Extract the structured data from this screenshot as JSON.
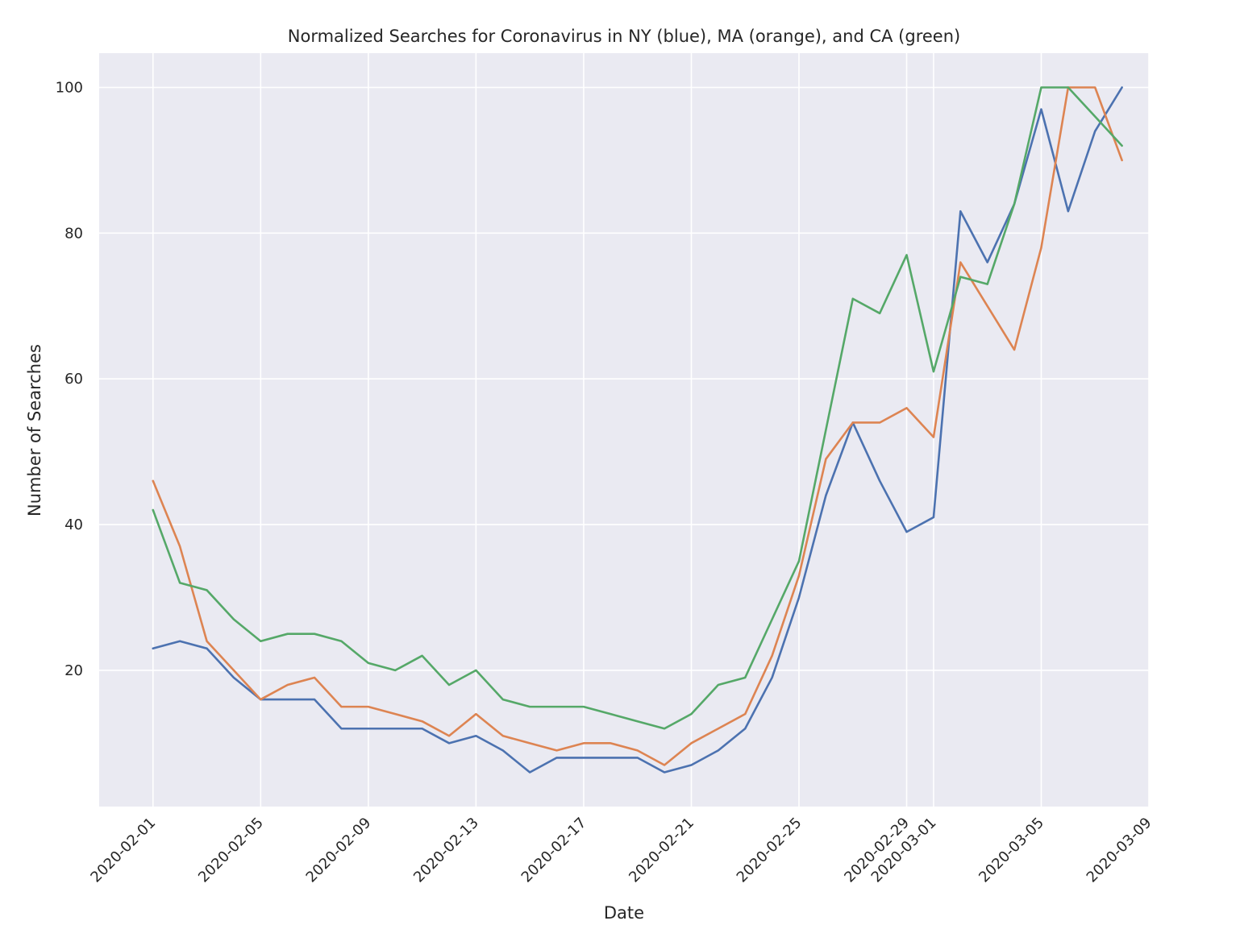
{
  "chart_data": {
    "type": "line",
    "title": "Normalized Searches for Coronavirus in NY (blue), MA (orange), and CA (green)",
    "xlabel": "Date",
    "ylabel": "Number of Searches",
    "x_tick_labels": [
      "2020-02-01",
      "2020-02-05",
      "2020-02-09",
      "2020-02-13",
      "2020-02-17",
      "2020-02-21",
      "2020-02-25",
      "2020-02-29",
      "2020-03-01",
      "2020-03-05",
      "2020-03-09"
    ],
    "y_tick_labels": [
      "20",
      "40",
      "60",
      "80",
      "100"
    ],
    "y_ticks": [
      20,
      40,
      60,
      80,
      100
    ],
    "xlim": [
      "2020-01-30",
      "2020-03-09"
    ],
    "ylim": [
      1.3,
      104.7
    ],
    "grid": true,
    "background": "#eaeaf2",
    "grid_color": "#ffffff",
    "x": [
      "2020-02-01",
      "2020-02-02",
      "2020-02-03",
      "2020-02-04",
      "2020-02-05",
      "2020-02-06",
      "2020-02-07",
      "2020-02-08",
      "2020-02-09",
      "2020-02-10",
      "2020-02-11",
      "2020-02-12",
      "2020-02-13",
      "2020-02-14",
      "2020-02-15",
      "2020-02-16",
      "2020-02-17",
      "2020-02-18",
      "2020-02-19",
      "2020-02-20",
      "2020-02-21",
      "2020-02-22",
      "2020-02-23",
      "2020-02-24",
      "2020-02-25",
      "2020-02-26",
      "2020-02-27",
      "2020-02-28",
      "2020-02-29",
      "2020-03-01",
      "2020-03-02",
      "2020-03-03",
      "2020-03-04",
      "2020-03-05",
      "2020-03-06",
      "2020-03-07",
      "2020-03-08"
    ],
    "series": [
      {
        "color": "#4c72b0",
        "values": [
          23,
          24,
          23,
          19,
          16,
          16,
          16,
          12,
          12,
          12,
          12,
          10,
          11,
          9,
          6,
          8,
          8,
          8,
          8,
          6,
          7,
          9,
          12,
          19,
          30,
          44,
          54,
          46,
          39,
          41,
          83,
          76,
          84,
          97,
          83,
          94,
          100
        ]
      },
      {
        "color": "#dd8452",
        "values": [
          46,
          37,
          24,
          20,
          16,
          18,
          19,
          15,
          15,
          14,
          13,
          11,
          14,
          11,
          10,
          9,
          10,
          10,
          9,
          7,
          10,
          12,
          14,
          22,
          33,
          49,
          54,
          54,
          56,
          52,
          76,
          70,
          64,
          78,
          100,
          100,
          90
        ]
      },
      {
        "color": "#55a868",
        "values": [
          42,
          32,
          31,
          27,
          24,
          25,
          25,
          24,
          21,
          20,
          22,
          18,
          20,
          16,
          15,
          15,
          15,
          14,
          13,
          12,
          14,
          18,
          19,
          27,
          35,
          53,
          71,
          69,
          77,
          61,
          74,
          73,
          84,
          100,
          100,
          96,
          92
        ]
      }
    ]
  }
}
